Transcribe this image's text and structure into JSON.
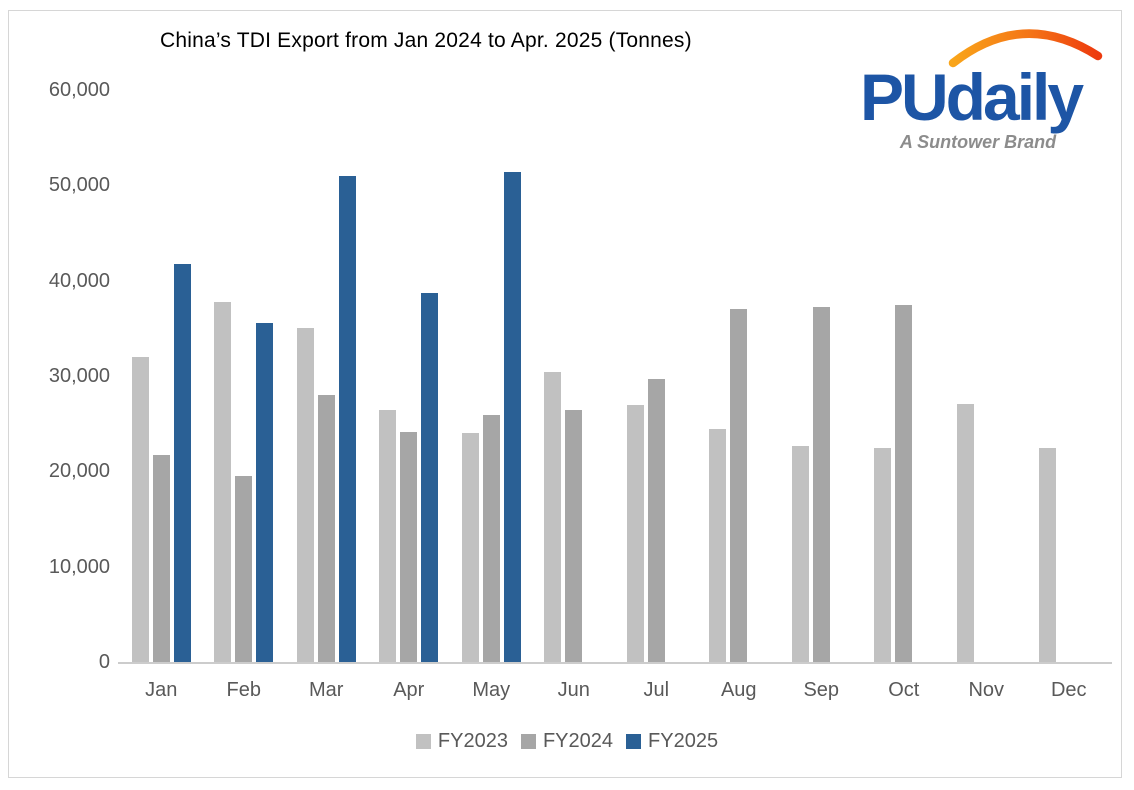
{
  "title": "China’s TDI Export from Jan 2024 to Apr. 2025 (Tonnes)",
  "logo": {
    "brand": "PUdaily",
    "tagline": "A Suntower Brand",
    "brand_color": "#1d55a5",
    "tagline_color": "#8c8c8c",
    "arc_color_start": "#f9a51a",
    "arc_color_end": "#ed3a0e"
  },
  "colors": {
    "fy2023": "#c1c1c1",
    "fy2024": "#a6a6a6",
    "fy2025": "#2a6095",
    "axis_text": "#595959",
    "axis_line": "#cccccc",
    "frame_border": "#d6d6d6",
    "title_text": "#000000"
  },
  "chart_data": {
    "type": "bar",
    "title": "China’s TDI Export from Jan 2024 to Apr. 2025 (Tonnes)",
    "categories": [
      "Jan",
      "Feb",
      "Mar",
      "Apr",
      "May",
      "Jun",
      "Jul",
      "Aug",
      "Sep",
      "Oct",
      "Nov",
      "Dec"
    ],
    "series": [
      {
        "name": "FY2023",
        "color_key": "fy2023",
        "values": [
          32000,
          37800,
          35000,
          26400,
          24000,
          30400,
          27000,
          24400,
          22700,
          22500,
          27100,
          22400
        ]
      },
      {
        "name": "FY2024",
        "color_key": "fy2024",
        "values": [
          21700,
          19500,
          28000,
          24100,
          25900,
          26400,
          29700,
          37000,
          37200,
          37500,
          null,
          null
        ]
      },
      {
        "name": "FY2025",
        "color_key": "fy2025",
        "values": [
          41700,
          35600,
          51000,
          38700,
          51400,
          null,
          null,
          null,
          null,
          null,
          null,
          null
        ]
      }
    ],
    "xlabel": "",
    "ylabel": "",
    "ylim": [
      0,
      60000
    ],
    "ytick_step": 10000,
    "ytick_labels": [
      "0",
      "10,000",
      "20,000",
      "30,000",
      "40,000",
      "50,000",
      "60,000"
    ],
    "grid": false,
    "legend_position": "bottom-center"
  }
}
